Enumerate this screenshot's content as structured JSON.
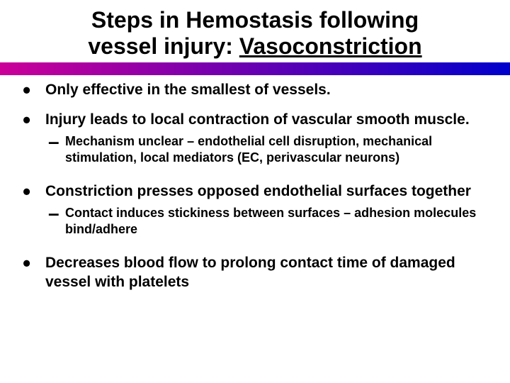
{
  "title": {
    "line1": "Steps in Hemostasis following",
    "line2_prefix": "vessel injury: ",
    "line2_underlined": "Vasoconstriction",
    "font_size": 32,
    "color": "#000000"
  },
  "gradient": {
    "from": "#cc0099",
    "to": "#0000cc",
    "height": 18
  },
  "bullets": [
    {
      "text": "Only effective in the smallest of vessels.",
      "subs": []
    },
    {
      "text": "Injury leads to local contraction of vascular smooth muscle.",
      "subs": [
        "Mechanism unclear – endothelial cell disruption, mechanical stimulation, local mediators (EC, perivascular neurons)"
      ]
    },
    {
      "text": "Constriction presses opposed endothelial surfaces together",
      "subs": [
        "Contact induces stickiness between surfaces – adhesion molecules bind/adhere"
      ]
    },
    {
      "text": "Decreases blood flow to prolong contact time of damaged vessel with platelets",
      "subs": []
    }
  ],
  "bullet_glyph": "•",
  "dash_glyph": "–",
  "text_color": "#000000",
  "background_color": "#ffffff",
  "bullet_font_size": 21,
  "sub_font_size": 18
}
